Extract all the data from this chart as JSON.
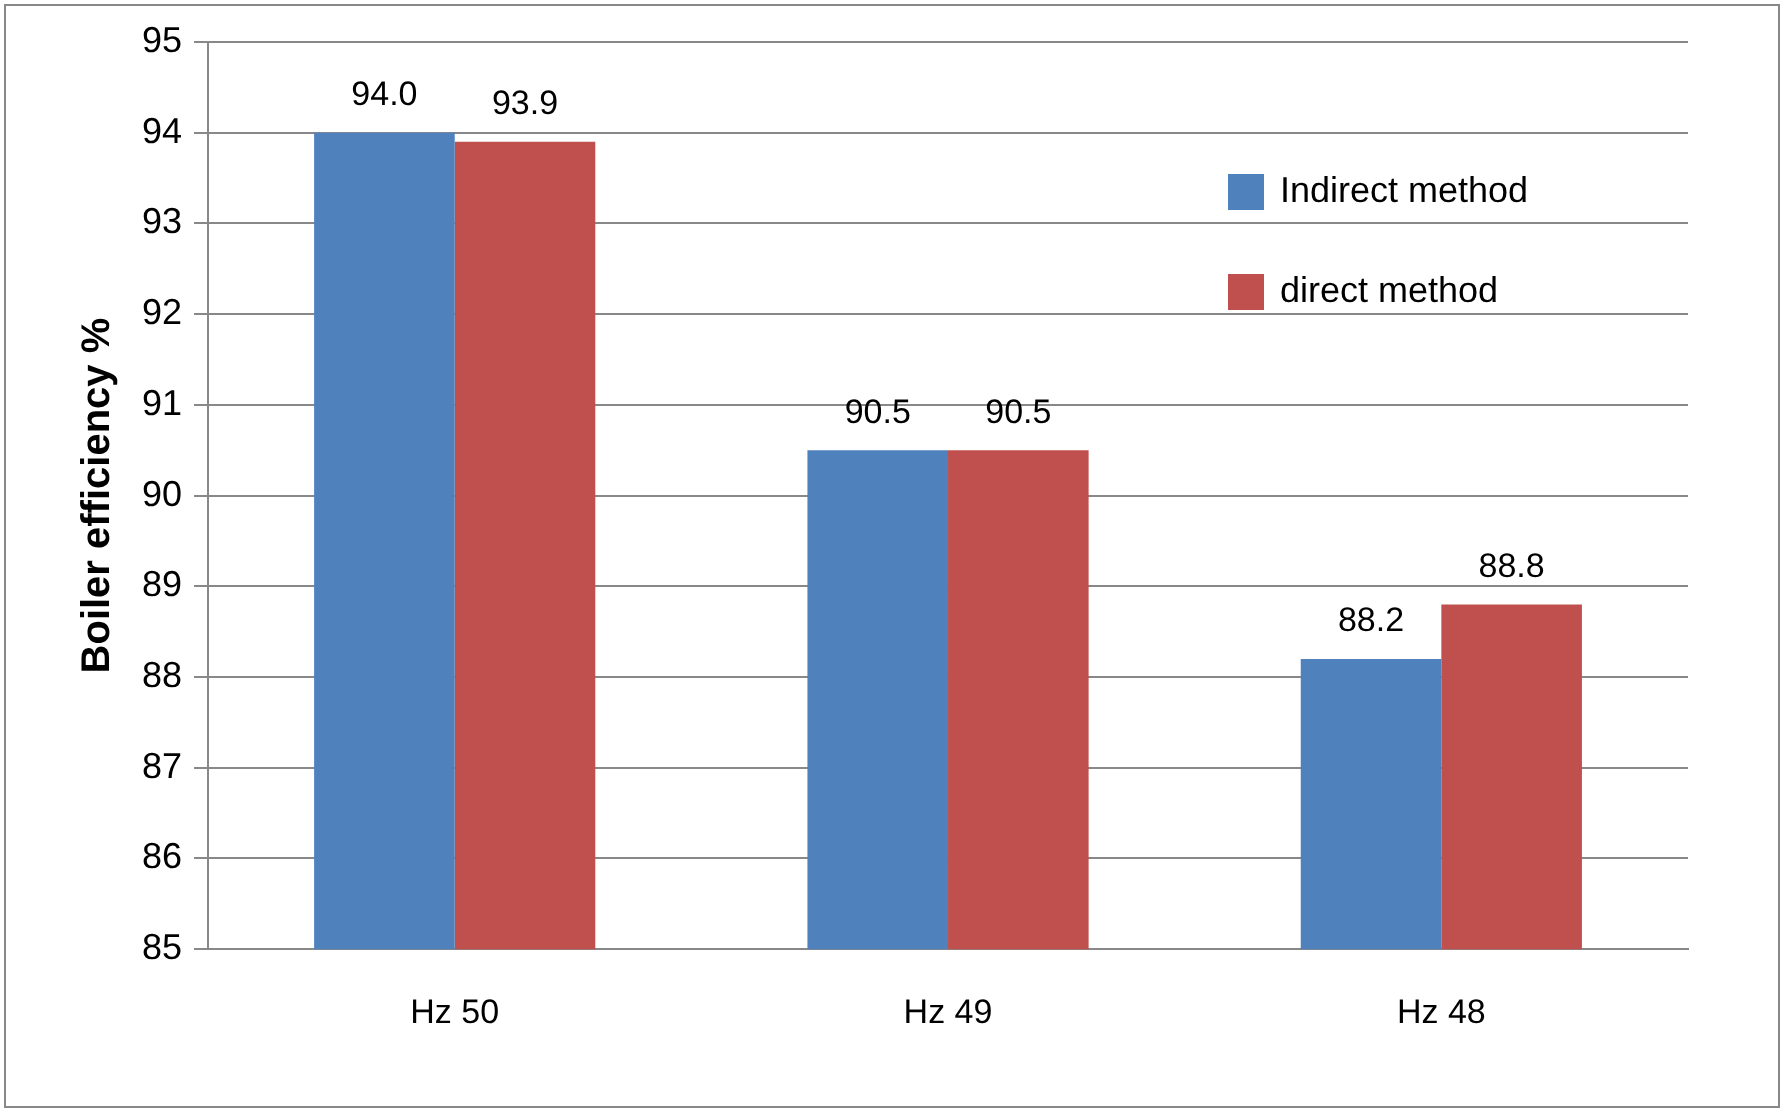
{
  "chart_data": {
    "type": "bar",
    "ylabel": "Boiler efficiency %",
    "categories": [
      "Hz 50",
      "Hz 49",
      "Hz 48"
    ],
    "series": [
      {
        "name": "Indirect method",
        "color": "#4f81bd",
        "values": [
          94.0,
          90.5,
          88.2
        ],
        "value_labels": [
          "94.0",
          "90.5",
          "88.2"
        ]
      },
      {
        "name": "direct method",
        "color": "#c0504d",
        "values": [
          93.9,
          90.5,
          88.8
        ],
        "value_labels": [
          "93.9",
          "90.5",
          "88.8"
        ]
      }
    ],
    "ylim": [
      85,
      95
    ],
    "yticks": [
      85,
      86,
      87,
      88,
      89,
      90,
      91,
      92,
      93,
      94,
      95
    ],
    "grid": "y",
    "legend": "top right"
  }
}
